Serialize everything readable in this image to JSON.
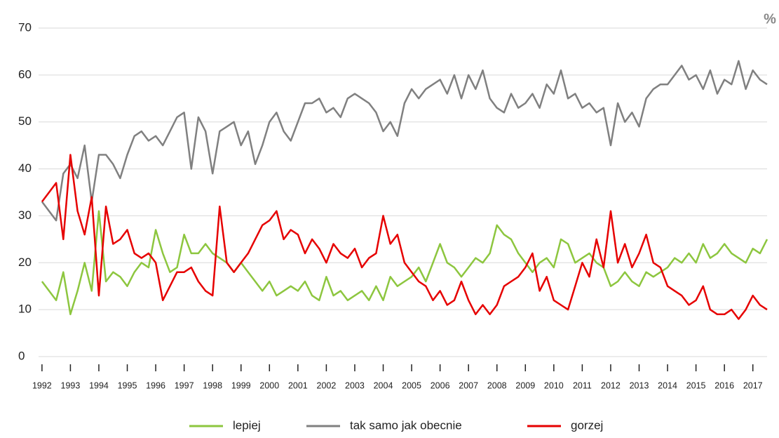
{
  "chart_data": {
    "type": "line",
    "unit": "%",
    "x": [
      1992,
      1992.25,
      1992.5,
      1992.75,
      1993,
      1993.25,
      1993.5,
      1993.75,
      1994,
      1994.25,
      1994.5,
      1994.75,
      1995,
      1995.25,
      1995.5,
      1995.75,
      1996,
      1996.25,
      1996.5,
      1996.75,
      1997,
      1997.25,
      1997.5,
      1997.75,
      1998,
      1998.25,
      1998.5,
      1998.75,
      1999,
      1999.25,
      1999.5,
      1999.75,
      2000,
      2000.25,
      2000.5,
      2000.75,
      2001,
      2001.25,
      2001.5,
      2001.75,
      2002,
      2002.25,
      2002.5,
      2002.75,
      2003,
      2003.25,
      2003.5,
      2003.75,
      2004,
      2004.25,
      2004.5,
      2004.75,
      2005,
      2005.25,
      2005.5,
      2005.75,
      2006,
      2006.25,
      2006.5,
      2006.75,
      2007,
      2007.25,
      2007.5,
      2007.75,
      2008,
      2008.25,
      2008.5,
      2008.75,
      2009,
      2009.25,
      2009.5,
      2009.75,
      2010,
      2010.25,
      2010.5,
      2010.75,
      2011,
      2011.25,
      2011.5,
      2011.75,
      2012,
      2012.25,
      2012.5,
      2012.75,
      2013,
      2013.25,
      2013.5,
      2013.75,
      2014,
      2014.25,
      2014.5,
      2014.75,
      2015,
      2015.25,
      2015.5,
      2015.75,
      2016,
      2016.25,
      2016.5,
      2016.75,
      2017,
      2017.25,
      2017.5
    ],
    "series": [
      {
        "name": "lepiej",
        "color": "#8dc63f",
        "values": [
          16,
          14,
          12,
          18,
          9,
          14,
          20,
          14,
          31,
          16,
          18,
          17,
          15,
          18,
          20,
          19,
          27,
          22,
          18,
          19,
          26,
          22,
          22,
          24,
          22,
          21,
          20,
          18,
          20,
          18,
          16,
          14,
          16,
          13,
          14,
          15,
          14,
          16,
          13,
          12,
          17,
          13,
          14,
          12,
          13,
          14,
          12,
          15,
          12,
          17,
          15,
          16,
          17,
          19,
          16,
          20,
          24,
          20,
          19,
          17,
          19,
          21,
          20,
          22,
          28,
          26,
          25,
          22,
          20,
          18,
          20,
          21,
          19,
          25,
          24,
          20,
          21,
          22,
          20,
          19,
          15,
          16,
          18,
          16,
          15,
          18,
          17,
          18,
          19,
          21,
          20,
          22,
          20,
          24,
          21,
          22,
          24,
          22,
          21,
          20,
          23,
          22,
          25
        ]
      },
      {
        "name": "tak samo jak obecnie",
        "color": "#808080",
        "values": [
          33,
          31,
          29,
          39,
          41,
          38,
          45,
          33,
          43,
          43,
          41,
          38,
          43,
          47,
          48,
          46,
          47,
          45,
          48,
          51,
          52,
          40,
          51,
          48,
          39,
          48,
          49,
          50,
          45,
          48,
          41,
          45,
          50,
          52,
          48,
          46,
          50,
          54,
          54,
          55,
          52,
          53,
          51,
          55,
          56,
          55,
          54,
          52,
          48,
          50,
          47,
          54,
          57,
          55,
          57,
          58,
          59,
          56,
          60,
          55,
          60,
          57,
          61,
          55,
          53,
          52,
          56,
          53,
          54,
          56,
          53,
          58,
          56,
          61,
          55,
          56,
          53,
          54,
          52,
          53,
          45,
          54,
          50,
          52,
          49,
          55,
          57,
          58,
          58,
          60,
          62,
          59,
          60,
          57,
          61,
          56,
          59,
          58,
          63,
          57,
          61,
          59,
          58
        ]
      },
      {
        "name": "gorzej",
        "color": "#e60000",
        "values": [
          33,
          35,
          37,
          25,
          43,
          31,
          26,
          34,
          13,
          32,
          24,
          25,
          27,
          22,
          21,
          22,
          20,
          12,
          15,
          18,
          18,
          19,
          16,
          14,
          13,
          32,
          20,
          18,
          20,
          22,
          25,
          28,
          29,
          31,
          25,
          27,
          26,
          22,
          25,
          23,
          20,
          24,
          22,
          21,
          23,
          19,
          21,
          22,
          30,
          24,
          26,
          20,
          18,
          16,
          15,
          12,
          14,
          11,
          12,
          16,
          12,
          9,
          11,
          9,
          11,
          15,
          16,
          17,
          19,
          22,
          14,
          17,
          12,
          11,
          10,
          15,
          20,
          17,
          25,
          19,
          31,
          20,
          24,
          19,
          22,
          26,
          20,
          19,
          15,
          14,
          13,
          11,
          12,
          15,
          10,
          9,
          9,
          10,
          8,
          10,
          13,
          11,
          10
        ]
      }
    ],
    "xlim": [
      1991.88,
      2017.5
    ],
    "xticks": [
      1992,
      1993,
      1994,
      1995,
      1996,
      1997,
      1998,
      1999,
      2000,
      2001,
      2002,
      2003,
      2004,
      2005,
      2006,
      2007,
      2008,
      2009,
      2010,
      2011,
      2012,
      2013,
      2014,
      2015,
      2016,
      2017
    ],
    "ylim": [
      0,
      70
    ],
    "yticks": [
      0,
      10,
      20,
      30,
      40,
      50,
      60,
      70
    ],
    "grid": true,
    "legend": "bottom"
  }
}
